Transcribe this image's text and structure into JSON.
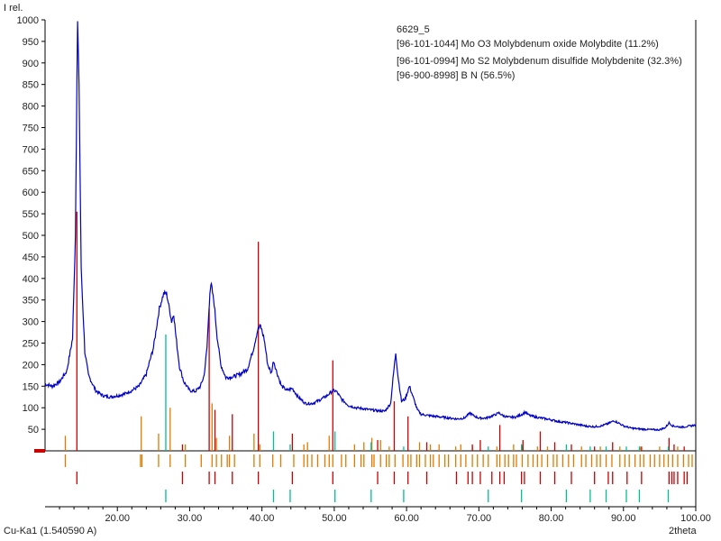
{
  "chart_data": {
    "type": "line",
    "ylabel": "I rel.",
    "xlabel": "2theta",
    "radiation": "Cu-Ka1 (1.540590 A)",
    "xlim": [
      10,
      100
    ],
    "ylim": [
      0,
      1000
    ],
    "x_ticks": [
      "20.00",
      "30.00",
      "40.00",
      "50.00",
      "60.00",
      "70.00",
      "80.00",
      "90.00",
      "100.00"
    ],
    "y_ticks": [
      "50",
      "100",
      "150",
      "200",
      "250",
      "300",
      "350",
      "400",
      "450",
      "500",
      "550",
      "600",
      "650",
      "700",
      "750",
      "800",
      "850",
      "900",
      "950",
      "1000"
    ],
    "grid": false,
    "legend_position": "top-right",
    "series": [
      {
        "name": "6629_5",
        "color": "#0000cc",
        "kind": "measured",
        "points": [
          [
            10.0,
            155
          ],
          [
            11.0,
            150
          ],
          [
            12.0,
            160
          ],
          [
            13.0,
            185
          ],
          [
            13.8,
            260
          ],
          [
            14.2,
            500
          ],
          [
            14.4,
            850
          ],
          [
            14.5,
            995
          ],
          [
            14.7,
            850
          ],
          [
            15.0,
            420
          ],
          [
            15.5,
            230
          ],
          [
            16.0,
            175
          ],
          [
            17.0,
            140
          ],
          [
            18.0,
            128
          ],
          [
            19.0,
            125
          ],
          [
            20.0,
            128
          ],
          [
            21.0,
            132
          ],
          [
            22.0,
            140
          ],
          [
            23.0,
            150
          ],
          [
            24.0,
            178
          ],
          [
            25.0,
            240
          ],
          [
            25.8,
            330
          ],
          [
            26.4,
            365
          ],
          [
            26.8,
            365
          ],
          [
            27.2,
            330
          ],
          [
            27.5,
            300
          ],
          [
            27.8,
            318
          ],
          [
            28.1,
            265
          ],
          [
            28.6,
            195
          ],
          [
            29.2,
            160
          ],
          [
            30.0,
            140
          ],
          [
            30.8,
            138
          ],
          [
            31.5,
            150
          ],
          [
            32.0,
            175
          ],
          [
            32.4,
            240
          ],
          [
            32.8,
            370
          ],
          [
            33.0,
            385
          ],
          [
            33.4,
            340
          ],
          [
            33.8,
            265
          ],
          [
            34.3,
            200
          ],
          [
            35.0,
            170
          ],
          [
            36.0,
            172
          ],
          [
            37.0,
            178
          ],
          [
            38.0,
            190
          ],
          [
            38.8,
            235
          ],
          [
            39.4,
            280
          ],
          [
            39.8,
            290
          ],
          [
            40.3,
            260
          ],
          [
            40.8,
            200
          ],
          [
            41.3,
            180
          ],
          [
            41.6,
            210
          ],
          [
            42.0,
            185
          ],
          [
            42.7,
            150
          ],
          [
            43.5,
            140
          ],
          [
            44.2,
            145
          ],
          [
            45.0,
            125
          ],
          [
            46.0,
            110
          ],
          [
            47.0,
            110
          ],
          [
            48.0,
            118
          ],
          [
            49.0,
            128
          ],
          [
            49.8,
            140
          ],
          [
            50.3,
            138
          ],
          [
            51.0,
            120
          ],
          [
            52.0,
            105
          ],
          [
            53.0,
            100
          ],
          [
            54.0,
            98
          ],
          [
            55.0,
            95
          ],
          [
            56.0,
            93
          ],
          [
            57.0,
            92
          ],
          [
            57.8,
            110
          ],
          [
            58.2,
            180
          ],
          [
            58.5,
            228
          ],
          [
            58.8,
            175
          ],
          [
            59.3,
            115
          ],
          [
            59.8,
            120
          ],
          [
            60.4,
            150
          ],
          [
            60.9,
            125
          ],
          [
            61.5,
            95
          ],
          [
            62.0,
            85
          ],
          [
            63.0,
            82
          ],
          [
            64.0,
            80
          ],
          [
            65.0,
            78
          ],
          [
            66.0,
            76
          ],
          [
            67.0,
            74
          ],
          [
            68.0,
            76
          ],
          [
            68.8,
            88
          ],
          [
            69.2,
            82
          ],
          [
            70.0,
            76
          ],
          [
            71.0,
            76
          ],
          [
            72.0,
            82
          ],
          [
            72.8,
            88
          ],
          [
            73.3,
            82
          ],
          [
            74.0,
            78
          ],
          [
            75.0,
            78
          ],
          [
            76.0,
            85
          ],
          [
            76.4,
            90
          ],
          [
            77.0,
            82
          ],
          [
            78.0,
            78
          ],
          [
            79.0,
            75
          ],
          [
            80.0,
            72
          ],
          [
            81.0,
            68
          ],
          [
            82.0,
            66
          ],
          [
            83.0,
            63
          ],
          [
            84.0,
            60
          ],
          [
            85.0,
            57
          ],
          [
            86.0,
            56
          ],
          [
            87.0,
            58
          ],
          [
            88.0,
            64
          ],
          [
            88.7,
            70
          ],
          [
            89.5,
            63
          ],
          [
            90.0,
            58
          ],
          [
            91.0,
            53
          ],
          [
            92.0,
            51
          ],
          [
            93.0,
            50
          ],
          [
            94.0,
            49
          ],
          [
            95.0,
            49
          ],
          [
            95.8,
            54
          ],
          [
            96.3,
            65
          ],
          [
            96.8,
            58
          ],
          [
            97.5,
            56
          ],
          [
            98.0,
            55
          ],
          [
            99.0,
            57
          ],
          [
            100.0,
            60
          ]
        ]
      },
      {
        "name": "[96-101-1044] Mo O3 Molybdenum oxide Molybdite (11.2%)",
        "color": "#e07b00",
        "kind": "reference",
        "sticks": [
          [
            12.8,
            35
          ],
          [
            23.3,
            80
          ],
          [
            25.7,
            40
          ],
          [
            27.3,
            100
          ],
          [
            29.4,
            15
          ],
          [
            33.1,
            110
          ],
          [
            33.7,
            30
          ],
          [
            35.5,
            35
          ],
          [
            38.9,
            40
          ],
          [
            39.7,
            15
          ],
          [
            45.8,
            15
          ],
          [
            46.3,
            20
          ],
          [
            49.3,
            35
          ],
          [
            52.8,
            15
          ],
          [
            54.1,
            20
          ],
          [
            55.2,
            30
          ],
          [
            56.4,
            25
          ],
          [
            57.6,
            10
          ],
          [
            61.8,
            20
          ],
          [
            63.3,
            15
          ],
          [
            64.5,
            15
          ],
          [
            66.8,
            10
          ],
          [
            67.5,
            15
          ],
          [
            69.1,
            10
          ],
          [
            72.5,
            10
          ],
          [
            74.8,
            15
          ],
          [
            76.0,
            10
          ],
          [
            78.1,
            10
          ],
          [
            79.5,
            10
          ],
          [
            84.2,
            10
          ],
          [
            86.8,
            10
          ],
          [
            89.5,
            10
          ],
          [
            92.3,
            10
          ],
          [
            95.0,
            10
          ],
          [
            97.5,
            10
          ]
        ],
        "tick_xs": [
          12.8,
          23.2,
          23.4,
          25.7,
          27.3,
          29.4,
          31.6,
          33.1,
          33.7,
          34.4,
          35.2,
          35.5,
          36.2,
          38.9,
          39.7,
          41.5,
          42.6,
          44.4,
          45.8,
          46.3,
          46.9,
          47.7,
          48.7,
          49.3,
          49.8,
          51.0,
          51.6,
          52.8,
          53.7,
          54.1,
          55.2,
          55.5,
          56.4,
          57.2,
          57.6,
          58.4,
          59.5,
          60.2,
          60.6,
          61.4,
          61.8,
          62.6,
          63.3,
          63.7,
          64.5,
          65.3,
          65.8,
          66.8,
          67.5,
          68.2,
          69.1,
          69.8,
          70.6,
          71.3,
          72.5,
          72.9,
          73.6,
          74.1,
          74.8,
          75.2,
          76.0,
          76.8,
          77.5,
          78.1,
          78.7,
          79.5,
          80.3,
          80.8,
          81.6,
          82.4,
          83.1,
          84.2,
          84.8,
          85.6,
          86.3,
          86.8,
          87.6,
          88.4,
          89.5,
          90.2,
          90.8,
          91.6,
          92.3,
          92.8,
          93.7,
          94.3,
          95.0,
          95.6,
          96.2,
          96.8,
          97.5,
          98.3,
          99.0,
          99.5
        ]
      },
      {
        "name": "[96-101-0994] Mo S2 Molybdenum disulfide Molybdenite (32.3%)",
        "color": "#cc0000",
        "kind": "reference",
        "sticks": [
          [
            14.4,
            555
          ],
          [
            29.0,
            15
          ],
          [
            32.7,
            330
          ],
          [
            33.5,
            95
          ],
          [
            35.9,
            85
          ],
          [
            39.5,
            485
          ],
          [
            44.2,
            40
          ],
          [
            49.8,
            210
          ],
          [
            56.0,
            25
          ],
          [
            58.3,
            115
          ],
          [
            60.2,
            80
          ],
          [
            62.8,
            20
          ],
          [
            69.1,
            15
          ],
          [
            70.2,
            25
          ],
          [
            72.9,
            60
          ],
          [
            75.9,
            15
          ],
          [
            76.1,
            25
          ],
          [
            78.5,
            45
          ],
          [
            80.5,
            20
          ],
          [
            82.8,
            15
          ],
          [
            86.0,
            10
          ],
          [
            88.5,
            20
          ],
          [
            92.5,
            10
          ],
          [
            96.3,
            30
          ],
          [
            97.0,
            15
          ],
          [
            98.4,
            10
          ]
        ],
        "tick_xs": [
          14.4,
          29.0,
          32.7,
          33.5,
          35.9,
          39.5,
          44.2,
          49.8,
          56.0,
          58.3,
          60.2,
          62.8,
          66.9,
          68.5,
          69.1,
          70.2,
          71.8,
          72.9,
          73.5,
          75.9,
          76.3,
          78.5,
          80.5,
          82.8,
          86.0,
          87.9,
          88.5,
          90.5,
          92.5,
          96.3,
          96.7,
          97.0,
          97.5,
          98.4,
          98.8
        ]
      },
      {
        "name": "[96-900-8998] B N  (56.5%)",
        "color": "#00c090",
        "kind": "reference",
        "sticks": [
          [
            26.7,
            270
          ],
          [
            41.6,
            45
          ],
          [
            43.9,
            15
          ],
          [
            50.1,
            45
          ],
          [
            55.1,
            20
          ],
          [
            59.6,
            10
          ],
          [
            71.3,
            10
          ],
          [
            75.9,
            15
          ],
          [
            82.1,
            15
          ],
          [
            85.4,
            10
          ],
          [
            87.6,
            10
          ],
          [
            90.4,
            10
          ],
          [
            92.2,
            10
          ],
          [
            96.2,
            10
          ]
        ],
        "tick_xs": [
          26.7,
          41.6,
          43.9,
          50.1,
          55.1,
          59.6,
          71.3,
          75.9,
          82.1,
          85.4,
          87.6,
          90.4,
          92.2,
          96.2
        ]
      }
    ]
  }
}
